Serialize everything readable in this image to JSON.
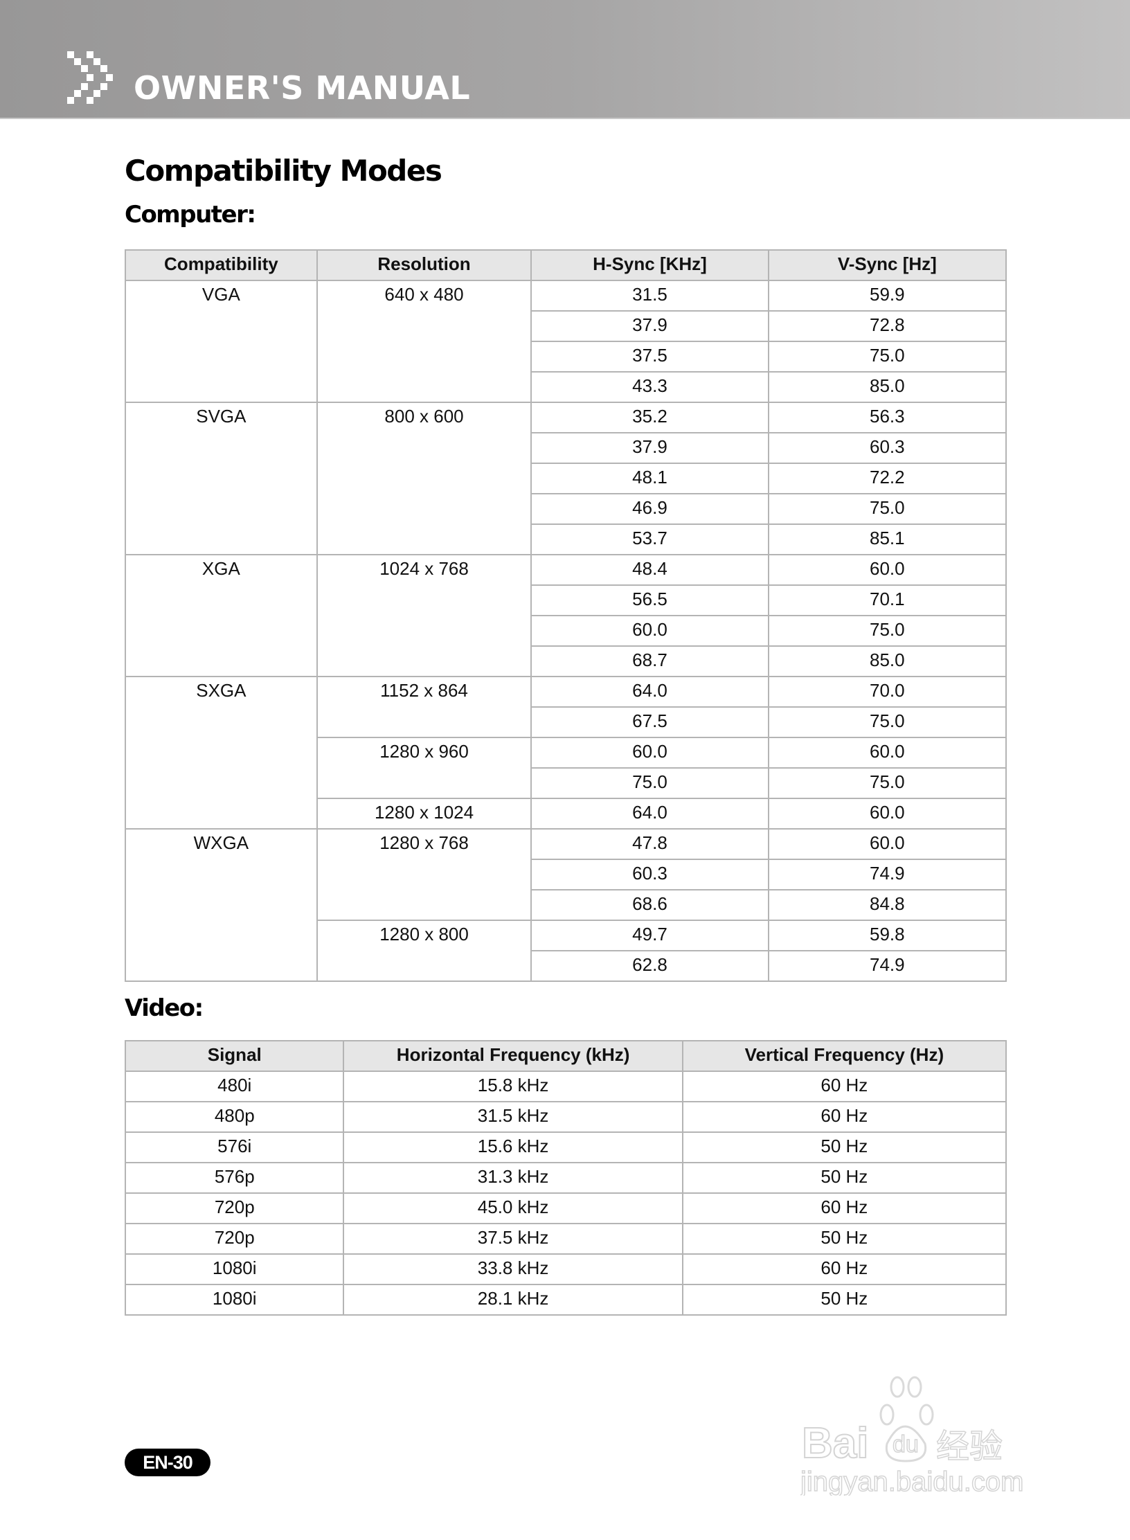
{
  "header": {
    "title": "OWNER'S MANUAL",
    "logo_icon": "double-chevron-pixel-icon"
  },
  "page_title": "Compatibility Modes",
  "computer": {
    "heading": "Computer:",
    "columns": [
      "Compatibility",
      "Resolution",
      "H-Sync [KHz]",
      "V-Sync [Hz]"
    ],
    "groups": [
      {
        "mode": "VGA",
        "resolutions": [
          {
            "res": "640 x 480",
            "rates": [
              [
                "31.5",
                "59.9"
              ],
              [
                "37.9",
                "72.8"
              ],
              [
                "37.5",
                "75.0"
              ],
              [
                "43.3",
                "85.0"
              ]
            ]
          }
        ]
      },
      {
        "mode": "SVGA",
        "resolutions": [
          {
            "res": "800 x 600",
            "rates": [
              [
                "35.2",
                "56.3"
              ],
              [
                "37.9",
                "60.3"
              ],
              [
                "48.1",
                "72.2"
              ],
              [
                "46.9",
                "75.0"
              ],
              [
                "53.7",
                "85.1"
              ]
            ]
          }
        ]
      },
      {
        "mode": "XGA",
        "resolutions": [
          {
            "res": "1024 x 768",
            "rates": [
              [
                "48.4",
                "60.0"
              ],
              [
                "56.5",
                "70.1"
              ],
              [
                "60.0",
                "75.0"
              ],
              [
                "68.7",
                "85.0"
              ]
            ]
          }
        ]
      },
      {
        "mode": "SXGA",
        "resolutions": [
          {
            "res": "1152 x 864",
            "rates": [
              [
                "64.0",
                "70.0"
              ],
              [
                "67.5",
                "75.0"
              ]
            ]
          },
          {
            "res": "1280 x 960",
            "rates": [
              [
                "60.0",
                "60.0"
              ],
              [
                "75.0",
                "75.0"
              ]
            ]
          },
          {
            "res": "1280 x 1024",
            "rates": [
              [
                "64.0",
                "60.0"
              ]
            ]
          }
        ]
      },
      {
        "mode": "WXGA",
        "resolutions": [
          {
            "res": "1280 x 768",
            "rates": [
              [
                "47.8",
                "60.0"
              ],
              [
                "60.3",
                "74.9"
              ],
              [
                "68.6",
                "84.8"
              ]
            ]
          },
          {
            "res": "1280 x 800",
            "rates": [
              [
                "49.7",
                "59.8"
              ],
              [
                "62.8",
                "74.9"
              ]
            ]
          }
        ]
      }
    ]
  },
  "video": {
    "heading": "Video:",
    "columns": [
      "Signal",
      "Horizontal Frequency (kHz)",
      "Vertical Frequency (Hz)"
    ],
    "rows": [
      [
        "480i",
        "15.8 kHz",
        "60 Hz"
      ],
      [
        "480p",
        "31.5 kHz",
        "60 Hz"
      ],
      [
        "576i",
        "15.6 kHz",
        "50 Hz"
      ],
      [
        "576p",
        "31.3 kHz",
        "50 Hz"
      ],
      [
        "720p",
        "45.0 kHz",
        "60 Hz"
      ],
      [
        "720p",
        "37.5 kHz",
        "50 Hz"
      ],
      [
        "1080i",
        "33.8 kHz",
        "60 Hz"
      ],
      [
        "1080i",
        "28.1 kHz",
        "50 Hz"
      ]
    ]
  },
  "page_number": "EN-30",
  "watermark": {
    "text": "Baidu经验",
    "url_text": "jingyan.baidu.com"
  }
}
